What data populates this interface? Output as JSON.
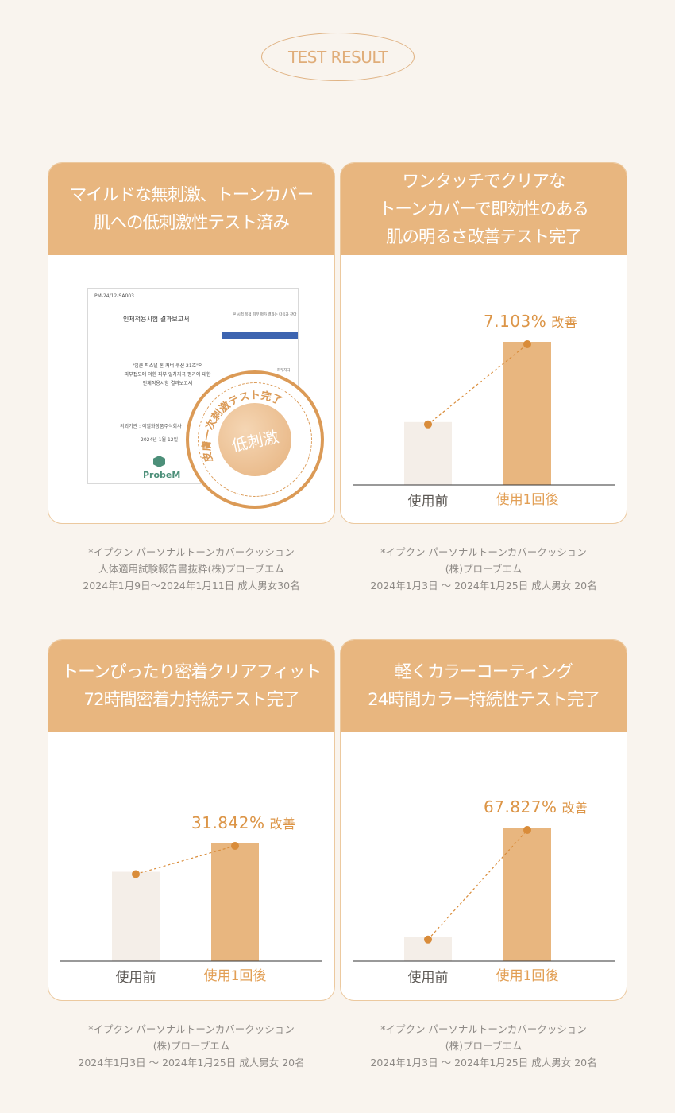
{
  "badge": "TEST RESULT",
  "cards": [
    {
      "title": "マイルドな無刺激、トーンカバー\n肌への低刺激性テスト済み",
      "report": {
        "code": "PM-24/12-SA003",
        "title": "인체적용시험 결과보고서",
        "body": "\"입큰 퍼스널 톤 커버 쿠션 21호\"의\n피부접모에 의한 피부 일차자극 평가에 대한\n인체적용시험 결과보고서",
        "client": "의뢰기관 : 이엘화장품주식회사",
        "date": "2024년 1월 12일",
        "brand": "ProbeM",
        "side_note": "본 시험 목적 피부 평가 결과는 다음과 같다",
        "side_rate": "피부자극"
      },
      "stamp": {
        "ring_text": "皮膚一次刺激テスト完了",
        "center": "低刺激"
      },
      "note": "*イプクン パーソナルトーンカバークッション\n人体適用試験報告書抜粋(株)プローブエム\n2024年1月9日〜2024年1月11日 成人男女30名"
    },
    {
      "title": "ワンタッチでクリアな\nトーンカバーで即効性のある\n肌の明るさ改善テスト完了",
      "chart": {
        "percent": "7.103%",
        "improve": "改善",
        "before_label": "使用前",
        "after_label": "使用1回後",
        "before_level": 0.44,
        "after_level": 1.0
      },
      "note": "*イプクン パーソナルトーンカバークッション\n(株)プローブエム\n2024年1月3日 ～ 2024年1月25日 成人男女 20名"
    },
    {
      "title": "トーンぴったり密着クリアフィット\n72時間密着力持続テスト完了",
      "chart": {
        "percent": "31.842%",
        "improve": "改善",
        "before_label": "使用前",
        "after_label": "使用1回後",
        "before_level": 0.76,
        "after_level": 1.0
      },
      "note": "*イプクン パーソナルトーンカバークッション\n(株)プローブエム\n2024年1月3日 ～ 2024年1月25日 成人男女 20名"
    },
    {
      "title": "軽くカラーコーティング\n24時間カラー持続性テスト完了",
      "chart": {
        "percent": "67.827%",
        "improve": "改善",
        "before_label": "使用前",
        "after_label": "使用1回後",
        "before_level": 0.18,
        "after_level": 1.0
      },
      "note": "*イプクン パーソナルトーンカバークッション\n(株)プローブエム\n2024年1月3日 ～ 2024年1月25日 成人男女 20名"
    }
  ],
  "colors": {
    "accent": "#e8b67f",
    "before_bar": "#f4eee8",
    "after_bar": "#e8b67f",
    "line": "#d98c3a"
  }
}
